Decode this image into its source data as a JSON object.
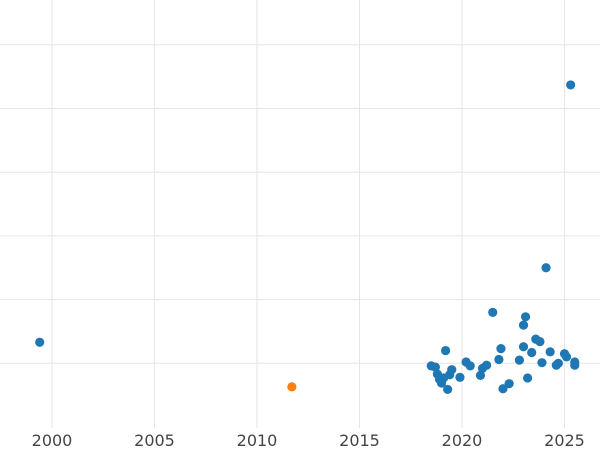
{
  "colors": {
    "series_blue": "#1f77b4",
    "series_orange": "#ff7f0e",
    "grid": "#e6e6e6",
    "tick_text": "#444444",
    "background": "#ffffff"
  },
  "chart_data": {
    "type": "scatter",
    "title": "",
    "xlabel": "",
    "ylabel": "",
    "grid": true,
    "legend": "none",
    "x_ticks": [
      "2000",
      "2005",
      "2010",
      "2015",
      "2020",
      "2025"
    ],
    "x_tick_values": [
      2000,
      2005,
      2010,
      2015,
      2020,
      2025
    ],
    "y_gridlines": [
      1,
      2,
      3,
      4,
      5,
      6
    ],
    "xlim": [
      1998,
      2026.5
    ],
    "ylim": [
      0,
      7
    ],
    "y_tick_labels_visible": false,
    "series": [
      {
        "color": "#1f77b4",
        "points": [
          {
            "x": 1999.4,
            "y": 1.33
          },
          {
            "x": 2018.5,
            "y": 0.96
          },
          {
            "x": 2018.7,
            "y": 0.94
          },
          {
            "x": 2018.8,
            "y": 0.83
          },
          {
            "x": 2018.9,
            "y": 0.75
          },
          {
            "x": 2019.0,
            "y": 0.69
          },
          {
            "x": 2019.1,
            "y": 0.77
          },
          {
            "x": 2019.2,
            "y": 1.2
          },
          {
            "x": 2019.3,
            "y": 0.59
          },
          {
            "x": 2019.4,
            "y": 0.82
          },
          {
            "x": 2019.5,
            "y": 0.9
          },
          {
            "x": 2019.9,
            "y": 0.78
          },
          {
            "x": 2020.2,
            "y": 1.02
          },
          {
            "x": 2020.4,
            "y": 0.96
          },
          {
            "x": 2020.9,
            "y": 0.81
          },
          {
            "x": 2021.0,
            "y": 0.92
          },
          {
            "x": 2021.2,
            "y": 0.97
          },
          {
            "x": 2021.5,
            "y": 1.8
          },
          {
            "x": 2021.8,
            "y": 1.06
          },
          {
            "x": 2021.9,
            "y": 1.23
          },
          {
            "x": 2022.0,
            "y": 0.6
          },
          {
            "x": 2022.3,
            "y": 0.68
          },
          {
            "x": 2022.8,
            "y": 1.05
          },
          {
            "x": 2023.0,
            "y": 1.26
          },
          {
            "x": 2023.0,
            "y": 1.6
          },
          {
            "x": 2023.1,
            "y": 1.73
          },
          {
            "x": 2023.2,
            "y": 0.77
          },
          {
            "x": 2023.4,
            "y": 1.17
          },
          {
            "x": 2023.6,
            "y": 1.38
          },
          {
            "x": 2023.8,
            "y": 1.34
          },
          {
            "x": 2023.9,
            "y": 1.01
          },
          {
            "x": 2024.1,
            "y": 2.5
          },
          {
            "x": 2024.3,
            "y": 1.18
          },
          {
            "x": 2024.6,
            "y": 0.97
          },
          {
            "x": 2024.7,
            "y": 1.0
          },
          {
            "x": 2025.0,
            "y": 1.15
          },
          {
            "x": 2025.1,
            "y": 1.1
          },
          {
            "x": 2025.3,
            "y": 5.37
          },
          {
            "x": 2025.5,
            "y": 0.97
          },
          {
            "x": 2025.5,
            "y": 1.02
          }
        ]
      },
      {
        "color": "#ff7f0e",
        "points": [
          {
            "x": 2011.7,
            "y": 0.63
          }
        ]
      }
    ]
  }
}
